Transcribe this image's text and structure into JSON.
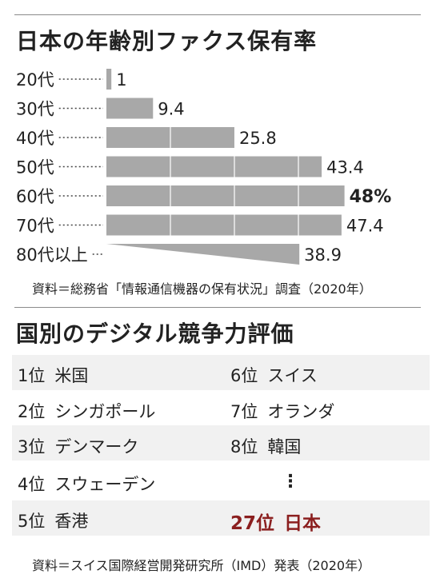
{
  "title": "日本の年齢別ファクス保有率",
  "chart_data": {
    "type": "bar",
    "orientation": "horizontal",
    "categories": [
      "20代",
      "30代",
      "40代",
      "50代",
      "60代",
      "70代",
      "80代以上"
    ],
    "values": [
      1,
      9.4,
      25.8,
      43.4,
      48,
      47.4,
      38.9
    ],
    "value_labels": [
      "1",
      "9.4",
      "25.8",
      "43.4",
      "48%",
      "47.4",
      "38.9"
    ],
    "max_value_label": "48%",
    "xlim": [
      0,
      50
    ],
    "grid": false,
    "bar_color": "#a8a8a8"
  },
  "source1": "資料＝総務省「情報通信機器の保有状況」調査（2020年）",
  "section2_title": "国別のデジタル競争力評価",
  "ranking": [
    {
      "pos": "1位",
      "name": "米国"
    },
    {
      "pos": "2位",
      "name": "シンガポール"
    },
    {
      "pos": "3位",
      "name": "デンマーク"
    },
    {
      "pos": "4位",
      "name": "スウェーデン"
    },
    {
      "pos": "5位",
      "name": "香港"
    },
    {
      "pos": "6位",
      "name": "スイス"
    },
    {
      "pos": "7位",
      "name": "オランダ"
    },
    {
      "pos": "8位",
      "name": "韓国"
    },
    {
      "pos": "27位",
      "name": "日本"
    }
  ],
  "ellipsis": "⋮",
  "source2": "資料＝スイス国際経営開発研究所（IMD）発表（2020年）"
}
